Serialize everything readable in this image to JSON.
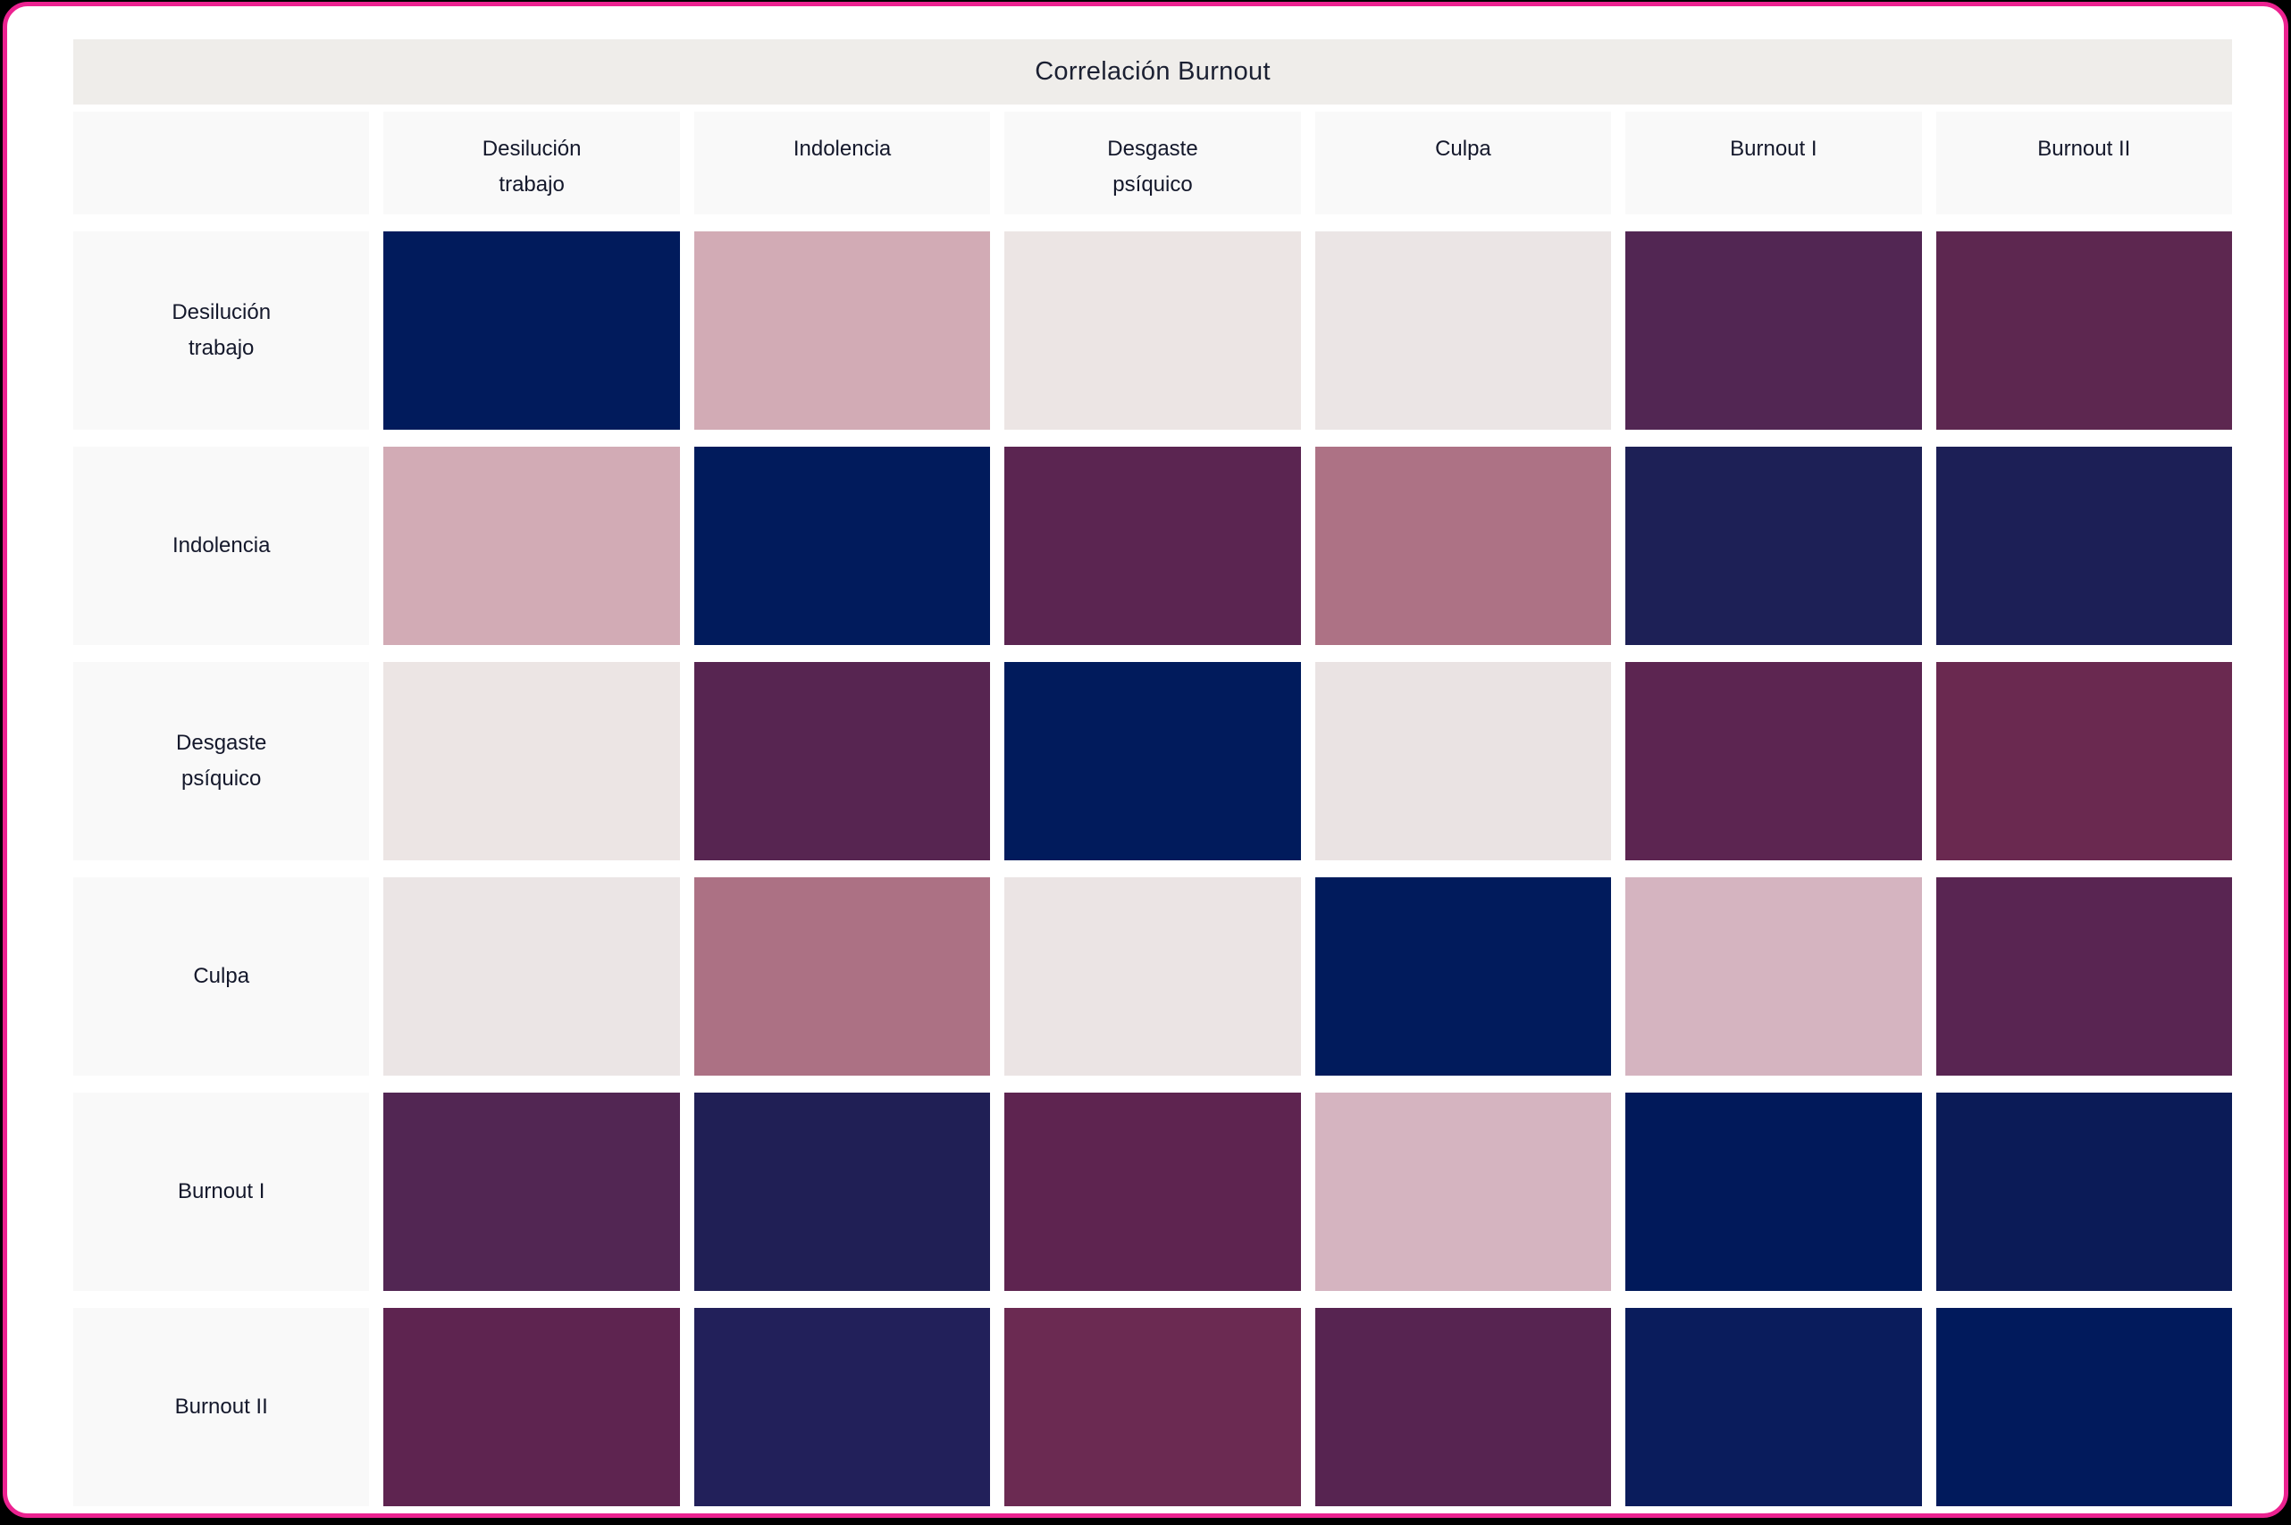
{
  "page": {
    "outer_background": "#000000",
    "card_border_color": "#ec2290",
    "card_background": "#ffffff"
  },
  "title_bar": {
    "background": "#efedea",
    "text_color": "#1b2032"
  },
  "label_style": {
    "background": "#f9f9f9",
    "text_color": "#14182b"
  },
  "chart_data": {
    "type": "heatmap",
    "title": "Correlación Burnout",
    "legend": "none",
    "values_shown": false,
    "grid": "white gaps between cells",
    "col_labels": [
      "Desilución\ntrabajo",
      "Indolencia",
      "Desgaste\npsíquico",
      "Culpa",
      "Burnout I",
      "Burnout II"
    ],
    "row_labels": [
      "Desilución\ntrabajo",
      "Indolencia",
      "Desgaste\npsíquico",
      "Culpa",
      "Burnout I",
      "Burnout II"
    ],
    "cell_colors": [
      [
        "#011b5c",
        "#d2abb5",
        "#ece5e4",
        "#ebe5e5",
        "#522653",
        "#5d2750"
      ],
      [
        "#d2abb5",
        "#011b5c",
        "#5b2551",
        "#ad7285",
        "#1d2056",
        "#1c1f56"
      ],
      [
        "#ece5e4",
        "#572551",
        "#011b5c",
        "#eae3e3",
        "#5c2551",
        "#6a2950"
      ],
      [
        "#ebe5e5",
        "#ac7184",
        "#ebe4e4",
        "#011b5c",
        "#d5b4c0",
        "#592552"
      ],
      [
        "#522653",
        "#201f55",
        "#5e2450",
        "#d5b4c0",
        "#01195a",
        "#0b1b57"
      ],
      [
        "#5e2450",
        "#22205a",
        "#6b2a52",
        "#572451",
        "#0a1c5c",
        "#011a5c"
      ]
    ]
  }
}
